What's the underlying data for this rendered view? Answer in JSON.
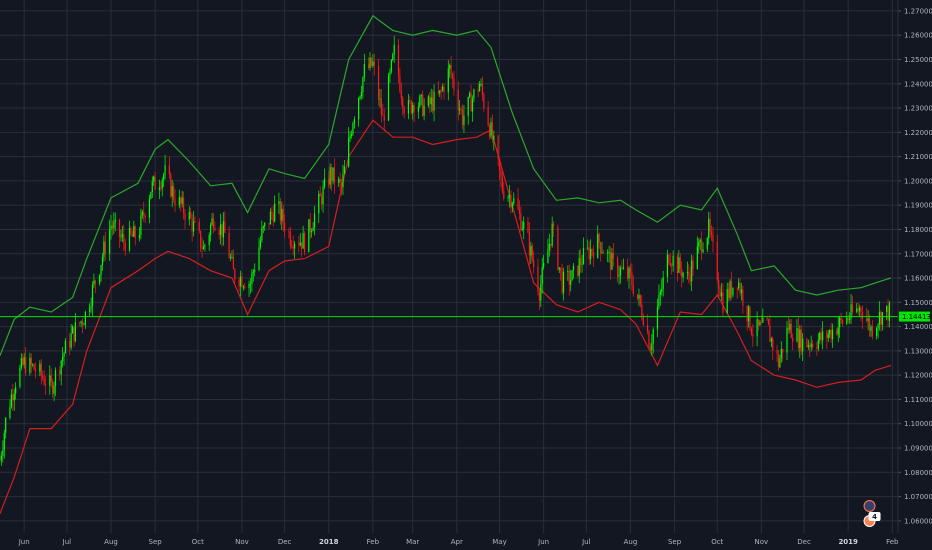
{
  "chart_data": {
    "type": "candlestick",
    "title": "",
    "xlabel": "",
    "ylabel": "",
    "ylim": [
      1.055,
      1.2745
    ],
    "xlim": [
      "2017-05-15",
      "2019-02-05"
    ],
    "grid": true,
    "colors": {
      "background": "#131722",
      "grid": "#2a2e39",
      "up": "#00ff00",
      "down": "#ff1a1a",
      "upper_band": "#2aa82a",
      "lower_band": "#d41f1f",
      "current_price": "#00e600",
      "axis_text": "#b2b5be"
    },
    "y_ticks": [
      "1.27000",
      "1.26000",
      "1.25000",
      "1.24000",
      "1.23000",
      "1.22000",
      "1.21000",
      "1.20000",
      "1.19000",
      "1.18000",
      "1.17000",
      "1.16000",
      "1.15000",
      "1.14000",
      "1.13000",
      "1.12000",
      "1.11000",
      "1.10000",
      "1.09000",
      "1.08000",
      "1.07000",
      "1.06000"
    ],
    "x_ticks": [
      {
        "date": "2017-06-01",
        "label": "Jun"
      },
      {
        "date": "2017-07-01",
        "label": "Jul"
      },
      {
        "date": "2017-08-01",
        "label": "Aug"
      },
      {
        "date": "2017-09-01",
        "label": "Sep"
      },
      {
        "date": "2017-10-01",
        "label": "Oct"
      },
      {
        "date": "2017-11-01",
        "label": "Nov"
      },
      {
        "date": "2017-12-01",
        "label": "Dec"
      },
      {
        "date": "2018-01-01",
        "label": "2018",
        "bold": true
      },
      {
        "date": "2018-02-01",
        "label": "Feb"
      },
      {
        "date": "2018-03-01",
        "label": "Mar"
      },
      {
        "date": "2018-04-01",
        "label": "Apr"
      },
      {
        "date": "2018-05-01",
        "label": "May"
      },
      {
        "date": "2018-06-01",
        "label": "Jun"
      },
      {
        "date": "2018-07-01",
        "label": "Jul"
      },
      {
        "date": "2018-08-01",
        "label": "Aug"
      },
      {
        "date": "2018-09-01",
        "label": "Sep"
      },
      {
        "date": "2018-10-01",
        "label": "Oct"
      },
      {
        "date": "2018-11-01",
        "label": "Nov"
      },
      {
        "date": "2018-12-01",
        "label": "Dec"
      },
      {
        "date": "2019-01-01",
        "label": "2019",
        "bold": true
      },
      {
        "date": "2019-02-01",
        "label": "Feb"
      }
    ],
    "price_path": [
      [
        "2017-05-15",
        1.085
      ],
      [
        "2017-05-20",
        1.105
      ],
      [
        "2017-05-26",
        1.118
      ],
      [
        "2017-06-01",
        1.125
      ],
      [
        "2017-06-10",
        1.122
      ],
      [
        "2017-06-20",
        1.115
      ],
      [
        "2017-06-28",
        1.128
      ],
      [
        "2017-07-05",
        1.137
      ],
      [
        "2017-07-14",
        1.145
      ],
      [
        "2017-07-24",
        1.165
      ],
      [
        "2017-08-01",
        1.182
      ],
      [
        "2017-08-10",
        1.175
      ],
      [
        "2017-08-20",
        1.178
      ],
      [
        "2017-08-29",
        1.197
      ],
      [
        "2017-09-08",
        1.203
      ],
      [
        "2017-09-15",
        1.193
      ],
      [
        "2017-09-25",
        1.185
      ],
      [
        "2017-10-05",
        1.172
      ],
      [
        "2017-10-12",
        1.185
      ],
      [
        "2017-10-20",
        1.178
      ],
      [
        "2017-10-26",
        1.162
      ],
      [
        "2017-11-07",
        1.158
      ],
      [
        "2017-11-15",
        1.178
      ],
      [
        "2017-11-25",
        1.19
      ],
      [
        "2017-12-05",
        1.177
      ],
      [
        "2017-12-15",
        1.175
      ],
      [
        "2017-12-22",
        1.186
      ],
      [
        "2018-01-02",
        1.203
      ],
      [
        "2018-01-10",
        1.197
      ],
      [
        "2018-01-18",
        1.226
      ],
      [
        "2018-01-26",
        1.245
      ],
      [
        "2018-02-01",
        1.248
      ],
      [
        "2018-02-08",
        1.225
      ],
      [
        "2018-02-16",
        1.253
      ],
      [
        "2018-02-24",
        1.228
      ],
      [
        "2018-03-02",
        1.233
      ],
      [
        "2018-03-10",
        1.23
      ],
      [
        "2018-03-20",
        1.235
      ],
      [
        "2018-03-27",
        1.246
      ],
      [
        "2018-04-05",
        1.226
      ],
      [
        "2018-04-17",
        1.24
      ],
      [
        "2018-04-25",
        1.22
      ],
      [
        "2018-05-03",
        1.197
      ],
      [
        "2018-05-10",
        1.193
      ],
      [
        "2018-05-20",
        1.178
      ],
      [
        "2018-05-29",
        1.155
      ],
      [
        "2018-06-07",
        1.18
      ],
      [
        "2018-06-14",
        1.158
      ],
      [
        "2018-06-21",
        1.16
      ],
      [
        "2018-06-28",
        1.168
      ],
      [
        "2018-07-10",
        1.175
      ],
      [
        "2018-07-20",
        1.165
      ],
      [
        "2018-08-01",
        1.16
      ],
      [
        "2018-08-10",
        1.145
      ],
      [
        "2018-08-15",
        1.133
      ],
      [
        "2018-08-28",
        1.17
      ],
      [
        "2018-09-10",
        1.16
      ],
      [
        "2018-09-20",
        1.175
      ],
      [
        "2018-09-25",
        1.18
      ],
      [
        "2018-10-05",
        1.15
      ],
      [
        "2018-10-15",
        1.16
      ],
      [
        "2018-10-26",
        1.138
      ],
      [
        "2018-11-05",
        1.14
      ],
      [
        "2018-11-13",
        1.125
      ],
      [
        "2018-11-20",
        1.14
      ],
      [
        "2018-12-01",
        1.133
      ],
      [
        "2018-12-14",
        1.135
      ],
      [
        "2018-12-28",
        1.142
      ],
      [
        "2019-01-10",
        1.148
      ],
      [
        "2019-01-17",
        1.139
      ],
      [
        "2019-01-24",
        1.145
      ],
      [
        "2019-01-30",
        1.146
      ]
    ],
    "upper_band": [
      [
        "2017-05-15",
        1.128
      ],
      [
        "2017-05-25",
        1.143
      ],
      [
        "2017-06-05",
        1.148
      ],
      [
        "2017-06-20",
        1.146
      ],
      [
        "2017-07-05",
        1.152
      ],
      [
        "2017-07-15",
        1.168
      ],
      [
        "2017-08-01",
        1.193
      ],
      [
        "2017-08-20",
        1.199
      ],
      [
        "2017-09-01",
        1.213
      ],
      [
        "2017-09-10",
        1.217
      ],
      [
        "2017-09-25",
        1.208
      ],
      [
        "2017-10-10",
        1.198
      ],
      [
        "2017-10-25",
        1.199
      ],
      [
        "2017-11-05",
        1.187
      ],
      [
        "2017-11-20",
        1.205
      ],
      [
        "2017-12-01",
        1.203
      ],
      [
        "2017-12-15",
        1.201
      ],
      [
        "2018-01-01",
        1.215
      ],
      [
        "2018-01-15",
        1.25
      ],
      [
        "2018-02-01",
        1.268
      ],
      [
        "2018-02-15",
        1.262
      ],
      [
        "2018-03-01",
        1.26
      ],
      [
        "2018-03-15",
        1.262
      ],
      [
        "2018-04-01",
        1.26
      ],
      [
        "2018-04-15",
        1.262
      ],
      [
        "2018-04-25",
        1.255
      ],
      [
        "2018-05-10",
        1.228
      ],
      [
        "2018-05-25",
        1.205
      ],
      [
        "2018-06-10",
        1.192
      ],
      [
        "2018-06-25",
        1.193
      ],
      [
        "2018-07-10",
        1.191
      ],
      [
        "2018-07-25",
        1.192
      ],
      [
        "2018-08-05",
        1.188
      ],
      [
        "2018-08-20",
        1.183
      ],
      [
        "2018-09-05",
        1.19
      ],
      [
        "2018-09-20",
        1.188
      ],
      [
        "2018-10-01",
        1.197
      ],
      [
        "2018-10-15",
        1.178
      ],
      [
        "2018-10-25",
        1.163
      ],
      [
        "2018-11-10",
        1.165
      ],
      [
        "2018-11-25",
        1.155
      ],
      [
        "2018-12-10",
        1.153
      ],
      [
        "2018-12-25",
        1.155
      ],
      [
        "2019-01-10",
        1.156
      ],
      [
        "2019-01-20",
        1.158
      ],
      [
        "2019-01-31",
        1.16
      ]
    ],
    "lower_band": [
      [
        "2017-05-15",
        1.063
      ],
      [
        "2017-05-25",
        1.078
      ],
      [
        "2017-06-05",
        1.098
      ],
      [
        "2017-06-20",
        1.098
      ],
      [
        "2017-07-05",
        1.108
      ],
      [
        "2017-07-15",
        1.13
      ],
      [
        "2017-08-01",
        1.156
      ],
      [
        "2017-08-20",
        1.163
      ],
      [
        "2017-09-01",
        1.168
      ],
      [
        "2017-09-10",
        1.171
      ],
      [
        "2017-09-25",
        1.168
      ],
      [
        "2017-10-10",
        1.163
      ],
      [
        "2017-10-25",
        1.16
      ],
      [
        "2017-11-05",
        1.145
      ],
      [
        "2017-11-20",
        1.163
      ],
      [
        "2017-12-01",
        1.167
      ],
      [
        "2017-12-15",
        1.168
      ],
      [
        "2018-01-01",
        1.173
      ],
      [
        "2018-01-15",
        1.21
      ],
      [
        "2018-02-01",
        1.225
      ],
      [
        "2018-02-15",
        1.218
      ],
      [
        "2018-03-01",
        1.218
      ],
      [
        "2018-03-15",
        1.215
      ],
      [
        "2018-04-01",
        1.217
      ],
      [
        "2018-04-15",
        1.218
      ],
      [
        "2018-04-25",
        1.221
      ],
      [
        "2018-05-10",
        1.19
      ],
      [
        "2018-05-25",
        1.158
      ],
      [
        "2018-06-10",
        1.149
      ],
      [
        "2018-06-25",
        1.146
      ],
      [
        "2018-07-10",
        1.15
      ],
      [
        "2018-07-25",
        1.147
      ],
      [
        "2018-08-05",
        1.141
      ],
      [
        "2018-08-20",
        1.124
      ],
      [
        "2018-09-05",
        1.146
      ],
      [
        "2018-09-20",
        1.145
      ],
      [
        "2018-10-01",
        1.153
      ],
      [
        "2018-10-15",
        1.138
      ],
      [
        "2018-10-25",
        1.126
      ],
      [
        "2018-11-10",
        1.12
      ],
      [
        "2018-11-25",
        1.118
      ],
      [
        "2018-12-10",
        1.115
      ],
      [
        "2018-12-25",
        1.117
      ],
      [
        "2019-01-10",
        1.118
      ],
      [
        "2019-01-20",
        1.122
      ],
      [
        "2019-01-31",
        1.124
      ]
    ],
    "current_price": 1.14413,
    "current_price_label": "1.14413",
    "badge_label": "4"
  }
}
